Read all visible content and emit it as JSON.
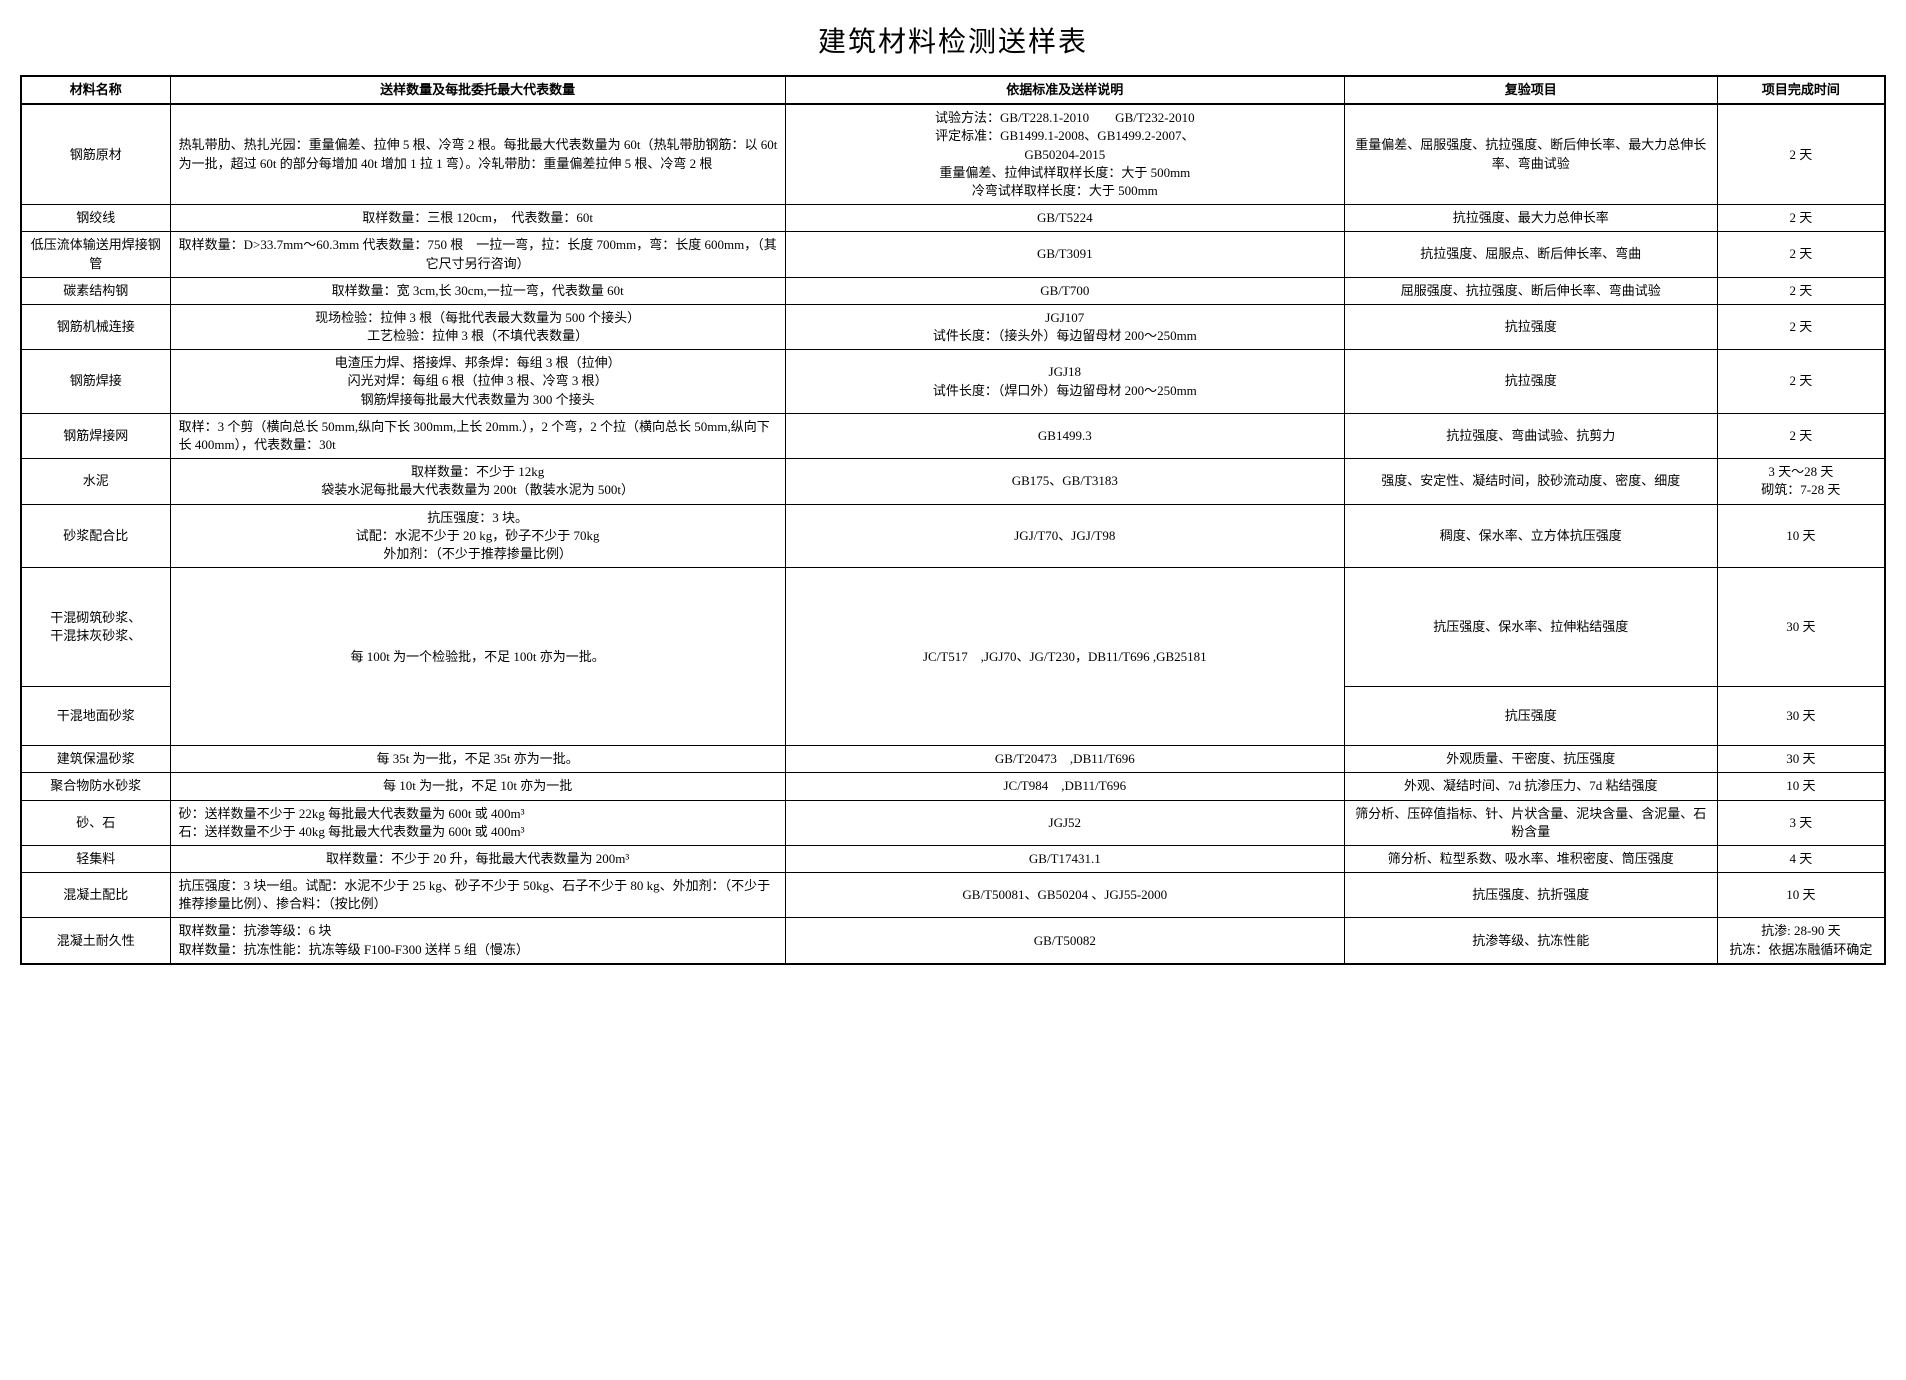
{
  "title": "建筑材料检测送样表",
  "headers": {
    "name": "材料名称",
    "qty": "送样数量及每批委托最大代表数量",
    "std": "依据标准及送样说明",
    "retest": "复验项目",
    "time": "项目完成时间"
  },
  "rows": [
    {
      "name": "钢筋原材",
      "qty": "热轧带肋、热扎光园：重量偏差、拉伸 5 根、冷弯 2 根。每批最大代表数量为 60t（热轧带肋钢筋：以 60t 为一批，超过 60t 的部分每增加 40t 增加 1 拉 1 弯）。冷轧带肋：重量偏差拉伸 5 根、冷弯 2 根",
      "std": "试验方法：GB/T228.1-2010　　GB/T232-2010\n评定标准：GB1499.1-2008、GB1499.2-2007、\nGB50204-2015\n重量偏差、拉伸试样取样长度：大于 500mm\n冷弯试样取样长度：大于 500mm",
      "retest": "重量偏差、屈服强度、抗拉强度、断后伸长率、最大力总伸长率、弯曲试验",
      "time": "2 天"
    },
    {
      "name": "钢绞线",
      "qty": "取样数量：三根 120cm，　代表数量：60t",
      "std": "GB/T5224",
      "retest": "抗拉强度、最大力总伸长率",
      "time": "2 天"
    },
    {
      "name": "低压流体输送用焊接钢管",
      "qty": "取样数量：D>33.7mm～60.3mm 代表数量：750 根　一拉一弯，拉：长度 700mm，弯：长度 600mm，（其它尺寸另行咨询）",
      "std": "GB/T3091",
      "retest": "抗拉强度、屈服点、断后伸长率、弯曲",
      "time": "2 天"
    },
    {
      "name": "碳素结构钢",
      "qty": "取样数量：宽 3cm,长 30cm,一拉一弯，代表数量 60t",
      "std": "GB/T700",
      "retest": "屈服强度、抗拉强度、断后伸长率、弯曲试验",
      "time": "2 天"
    },
    {
      "name": "钢筋机械连接",
      "qty": "现场检验：拉伸 3 根（每批代表最大数量为 500 个接头）\n工艺检验：拉伸 3 根（不填代表数量）",
      "std": "JGJ107\n试件长度：（接头外）每边留母材 200～250mm",
      "retest": "抗拉强度",
      "time": "2 天"
    },
    {
      "name": "钢筋焊接",
      "qty": "电渣压力焊、搭接焊、邦条焊：每组 3 根（拉伸）\n闪光对焊：每组 6 根（拉伸 3 根、冷弯 3 根）\n钢筋焊接每批最大代表数量为 300 个接头",
      "std": "JGJ18\n试件长度：（焊口外）每边留母材 200～250mm",
      "retest": "抗拉强度",
      "time": "2 天"
    },
    {
      "name": "钢筋焊接网",
      "qty": "取样：3 个剪（横向总长 50mm,纵向下长 300mm,上长 20mm.），2 个弯，2 个拉（横向总长 50mm,纵向下长 400mm），代表数量：30t",
      "std": "GB1499.3",
      "retest": "抗拉强度、弯曲试验、抗剪力",
      "time": "2 天"
    },
    {
      "name": "水泥",
      "qty": "取样数量：不少于 12kg\n袋装水泥每批最大代表数量为 200t（散装水泥为 500t）",
      "std": "GB175、GB/T3183",
      "retest": "强度、安定性、凝结时间，胶砂流动度、密度、细度",
      "time": "3 天～28 天\n砌筑：7-28 天"
    },
    {
      "name": "砂浆配合比",
      "qty": "抗压强度：3 块。\n试配：水泥不少于 20 kg，砂子不少于 70kg\n外加剂：（不少于推荐掺量比例）",
      "std": "JGJ/T70、JGJ/T98",
      "retest": "稠度、保水率、立方体抗压强度",
      "time": "10 天"
    },
    {
      "name_a": "干混砌筑砂浆、\n干混抹灰砂浆、",
      "name_b": "干混地面砂浆",
      "qty": "每 100t 为一个检验批，不足 100t 亦为一批。",
      "std": "JC/T517　,JGJ70、JG/T230，DB11/T696 ,GB25181",
      "retest_a": "抗压强度、保水率、拉伸粘结强度",
      "retest_b": "抗压强度",
      "time_a": "30 天",
      "time_b": "30 天",
      "merged": true
    },
    {
      "name": "建筑保温砂浆",
      "qty": "每 35t 为一批，不足 35t 亦为一批。",
      "std": "GB/T20473　,DB11/T696",
      "retest": "外观质量、干密度、抗压强度",
      "time": "30 天"
    },
    {
      "name": "聚合物防水砂浆",
      "qty": "每 10t 为一批，不足 10t 亦为一批",
      "std": "JC/T984　,DB11/T696",
      "retest": "外观、凝结时间、7d 抗渗压力、7d 粘结强度",
      "time": "10 天"
    },
    {
      "name": "砂、石",
      "qty": "砂：送样数量不少于 22kg 每批最大代表数量为 600t 或 400m³\n石：送样数量不少于 40kg 每批最大代表数量为 600t 或 400m³",
      "std": "JGJ52",
      "retest": "筛分析、压碎值指标、针、片状含量、泥块含量、含泥量、石粉含量",
      "time": "3 天"
    },
    {
      "name": "轻集料",
      "qty": "取样数量：不少于 20 升，每批最大代表数量为 200m³",
      "std": "GB/T17431.1",
      "retest": "筛分析、粒型系数、吸水率、堆积密度、筒压强度",
      "time": "4 天"
    },
    {
      "name": "混凝土配比",
      "qty": "抗压强度：3 块一组。试配：水泥不少于 25 kg、砂子不少于 50kg、石子不少于 80 kg、外加剂：（不少于推荐掺量比例）、掺合料：（按比例）",
      "std": "GB/T50081、GB50204 、JGJ55-2000",
      "retest": "抗压强度、抗折强度",
      "time": "10 天"
    },
    {
      "name": "混凝土耐久性",
      "qty": "取样数量：抗渗等级：6 块\n取样数量：抗冻性能：抗冻等级 F100-F300 送样 5 组（慢冻）",
      "std": "GB/T50082",
      "retest": "抗渗等级、抗冻性能",
      "time": "抗渗: 28-90 天\n抗冻：依据冻融循环确定"
    }
  ]
}
